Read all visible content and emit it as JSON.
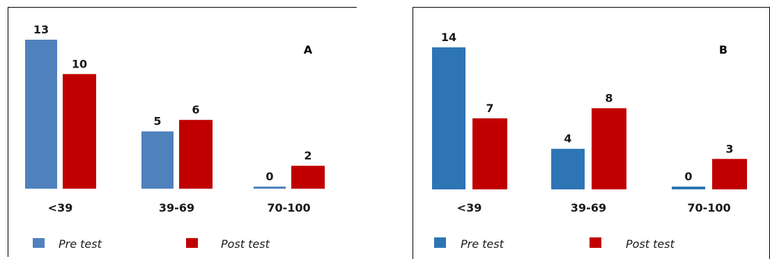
{
  "chart_data": [
    {
      "type": "bar",
      "panel_letter": "A",
      "categories": [
        "<39",
        "39-69",
        "70-100"
      ],
      "series": [
        {
          "name": "Pre test",
          "values": [
            13,
            5,
            0
          ],
          "color": "#4f81bd"
        },
        {
          "name": "Post test",
          "values": [
            10,
            6,
            2
          ],
          "color": "#c00000"
        }
      ],
      "ylim": [
        0,
        13
      ],
      "grid": false,
      "legend_position": "bottom-left"
    },
    {
      "type": "bar",
      "panel_letter": "B",
      "categories": [
        "<39",
        "39-69",
        "70-100"
      ],
      "series": [
        {
          "name": "Pre test",
          "values": [
            14,
            4,
            0
          ],
          "color": "#2e75b6"
        },
        {
          "name": "Post test",
          "values": [
            7,
            8,
            3
          ],
          "color": "#c00000"
        }
      ],
      "ylim": [
        0,
        14
      ],
      "grid": false,
      "legend_position": "bottom-left"
    }
  ]
}
